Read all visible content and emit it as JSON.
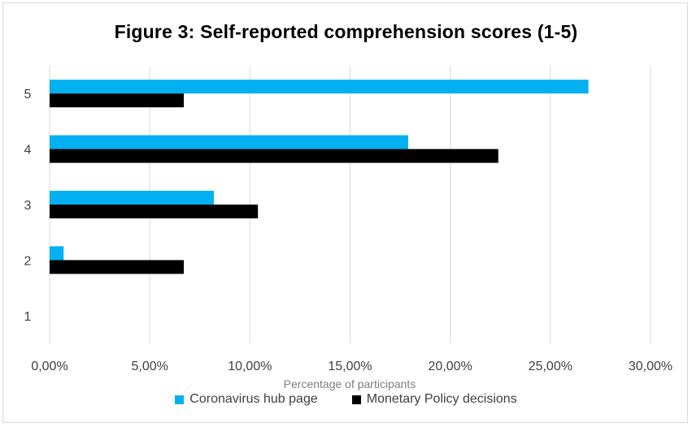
{
  "chart_data": {
    "type": "bar",
    "orientation": "horizontal",
    "title": "Figure 3: Self-reported comprehension scores (1-5)",
    "xlabel": "Percentage of participants",
    "ylabel": "",
    "categories": [
      "1",
      "2",
      "3",
      "4",
      "5"
    ],
    "series": [
      {
        "name": "Coronavirus hub page",
        "color": "#00b0f0",
        "values": [
          0.0,
          0.7,
          8.2,
          17.9,
          26.9
        ]
      },
      {
        "name": "Monetary Policy decisions",
        "color": "#000000",
        "values": [
          0.0,
          6.7,
          10.4,
          22.4,
          6.7
        ]
      }
    ],
    "xlim": [
      0,
      30
    ],
    "xticks": [
      0,
      5,
      10,
      15,
      20,
      25,
      30
    ],
    "xtick_labels": [
      "0,00%",
      "5,00%",
      "10,00%",
      "15,00%",
      "20,00%",
      "25,00%",
      "30,00%"
    ],
    "grid": "vertical",
    "legend_position": "bottom"
  }
}
